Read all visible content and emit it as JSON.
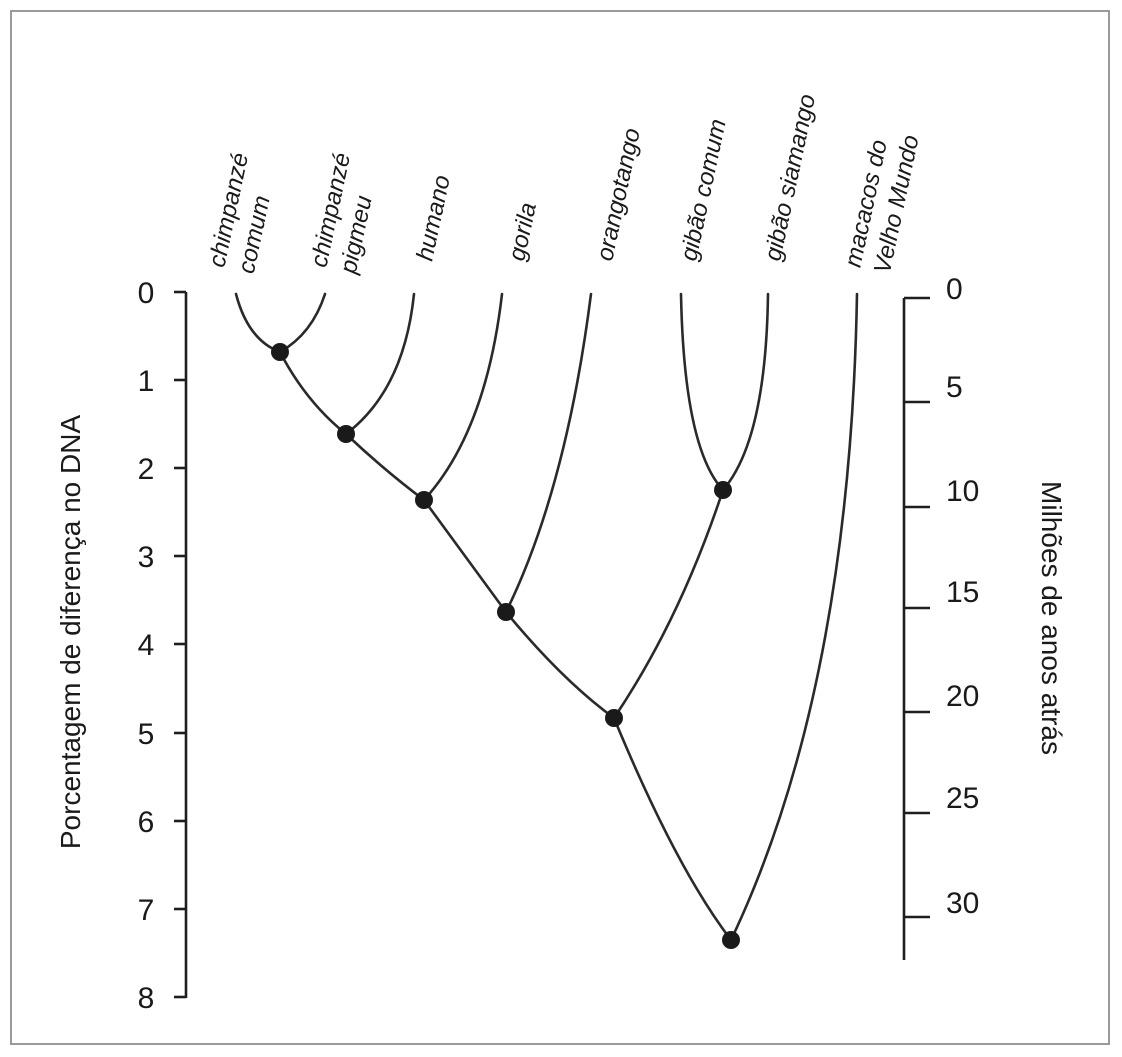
{
  "left_axis": {
    "title": "Porcentagem de diferença no DNA",
    "ticks": [
      "0",
      "1",
      "2",
      "3",
      "4",
      "5",
      "6",
      "7",
      "8"
    ]
  },
  "right_axis": {
    "title": "Milhões de anos atrás",
    "ticks": [
      "0",
      "5",
      "10",
      "15",
      "20",
      "25",
      "30"
    ]
  },
  "species": [
    {
      "line1": "chimpanzé",
      "line2": "comum"
    },
    {
      "line1": "chimpanzé",
      "line2": "pigmeu"
    },
    {
      "line1": "humano",
      "line2": ""
    },
    {
      "line1": "gorila",
      "line2": ""
    },
    {
      "line1": "orangotango",
      "line2": ""
    },
    {
      "line1": "gibão comum",
      "line2": ""
    },
    {
      "line1": "gibão siamango",
      "line2": ""
    },
    {
      "line1": "macacos do",
      "line2": "Velho Mundo"
    }
  ],
  "divergences_percent_dna": [
    {
      "taxa": [
        "chimpanzé comum",
        "chimpanzé pigmeu"
      ],
      "value": 0.7
    },
    {
      "taxa": [
        "chimpanzés",
        "humano"
      ],
      "value": 1.6
    },
    {
      "taxa": [
        "chimpanzés + humano",
        "gorila"
      ],
      "value": 2.4
    },
    {
      "taxa": [
        "chimpanzés + humano + gorila",
        "orangotango"
      ],
      "value": 3.6
    },
    {
      "taxa": [
        "gibão comum",
        "gibão siamango"
      ],
      "value": 2.2
    },
    {
      "taxa": [
        "grandes macacos",
        "gibões"
      ],
      "value": 4.8
    },
    {
      "taxa": [
        "hominoides",
        "macacos do Velho Mundo"
      ],
      "value": 7.3
    }
  ]
}
